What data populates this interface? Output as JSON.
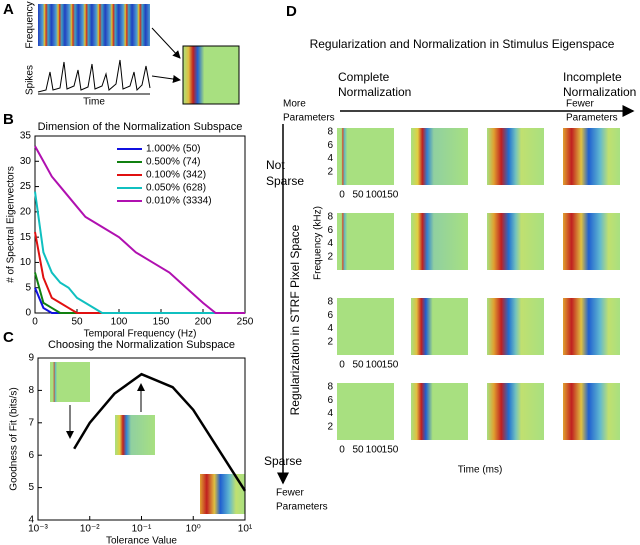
{
  "panel_a": {
    "letter": "A",
    "y_label_top": "Frequency",
    "y_label_bottom": "Spikes",
    "x_label": "Time"
  },
  "panel_b": {
    "letter": "B"
  },
  "panel_c": {
    "letter": "C"
  },
  "chart_data": [
    {
      "type": "line",
      "title": "Dimension of the Normalization Subspace",
      "x_label": "Temporal Frequency (Hz)",
      "y_label": "# of Spectral Eigenvectors",
      "xlim": [
        0,
        250
      ],
      "ylim": [
        0,
        35
      ],
      "xticks": [
        0,
        50,
        100,
        150,
        200,
        250
      ],
      "yticks": [
        0,
        5,
        10,
        15,
        20,
        25,
        30,
        35
      ],
      "x": [
        0,
        10,
        20,
        30,
        40,
        50,
        60,
        80,
        100,
        120,
        140,
        160,
        180,
        200,
        215,
        250
      ],
      "series": [
        {
          "name": "1.000% (50)",
          "color": "#1010e0",
          "values": [
            5,
            1,
            0,
            0,
            0,
            0,
            0,
            0,
            0,
            0,
            0,
            0,
            0,
            0,
            0,
            0
          ]
        },
        {
          "name": "0.500% (74)",
          "color": "#108010",
          "values": [
            8,
            2,
            1,
            0,
            0,
            0,
            0,
            0,
            0,
            0,
            0,
            0,
            0,
            0,
            0,
            0
          ]
        },
        {
          "name": "0.100% (342)",
          "color": "#e01010",
          "values": [
            16,
            7,
            3,
            2,
            1,
            0,
            0,
            0,
            0,
            0,
            0,
            0,
            0,
            0,
            0,
            0
          ]
        },
        {
          "name": "0.050% (628)",
          "color": "#10c0c0",
          "values": [
            24,
            12,
            8,
            6,
            5,
            3,
            2,
            0,
            0,
            0,
            0,
            0,
            0,
            0,
            0,
            0
          ]
        },
        {
          "name": "0.010% (3334)",
          "color": "#b010b0",
          "values": [
            33,
            30,
            27,
            25,
            23,
            21,
            19,
            17,
            15,
            12,
            10,
            8,
            5,
            2,
            0,
            0
          ]
        }
      ]
    },
    {
      "type": "line",
      "title": "Choosing the Normalization Subspace",
      "x_label": "Tolerance Value",
      "y_label": "Goodness of Fit (bits/s)",
      "log_x": true,
      "xlim": [
        0.001,
        10
      ],
      "ylim": [
        4,
        9
      ],
      "xticks": [
        {
          "value": 0.001,
          "label": "10⁻³"
        },
        {
          "value": 0.01,
          "label": "10⁻²"
        },
        {
          "value": 0.1,
          "label": "10⁻¹"
        },
        {
          "value": 1,
          "label": "10⁰"
        },
        {
          "value": 10,
          "label": "10¹"
        }
      ],
      "yticks": [
        4,
        5,
        6,
        7,
        8,
        9
      ],
      "x": [
        0.005,
        0.01,
        0.03,
        0.1,
        0.4,
        1,
        10
      ],
      "series": [
        {
          "color": "#000000",
          "values": [
            6.2,
            7.0,
            7.9,
            8.5,
            8.1,
            7.4,
            4.9
          ]
        }
      ]
    }
  ],
  "panel_d": {
    "letter": "D",
    "title": "Regularization and Normalization in Stimulus Eigenspace",
    "complete_normalization": [
      "Complete",
      "Normalization"
    ],
    "incomplete_normalization": [
      "Incomplete",
      "Normalization"
    ],
    "more_parameters": [
      "More",
      "Parameters"
    ],
    "fewer_parameters_top": [
      "Fewer",
      "Parameters"
    ],
    "not_sparse": [
      "Not",
      "Sparse"
    ],
    "sparse": "Sparse",
    "fewer_parameters_bottom": [
      "Fewer",
      "Parameters"
    ],
    "row_axis_label": "Regularization in STRF Pixel Space",
    "freq_label": "Frequency (kHz)",
    "time_label": "Time (ms)",
    "freq_ticks": [
      2,
      4,
      6,
      8
    ],
    "time_ticks": [
      0,
      50,
      100,
      150
    ]
  }
}
